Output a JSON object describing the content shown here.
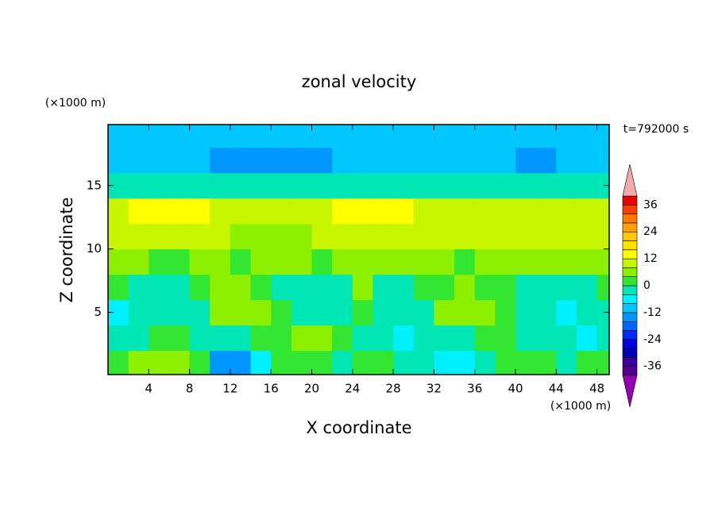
{
  "chart_data": {
    "type": "contour",
    "title": "zonal velocity",
    "xlabel": "X coordinate",
    "ylabel": "Z coordinate",
    "x_unit": "(×1000 m)",
    "y_unit": "(×1000 m)",
    "annotation": "t=792000 s",
    "xlim": [
      0,
      49.2
    ],
    "ylim": [
      0.1,
      19.8
    ],
    "xticks": [
      4,
      8,
      12,
      16,
      20,
      24,
      28,
      32,
      36,
      40,
      44,
      48
    ],
    "yticks": [
      5,
      10,
      15
    ],
    "x": [
      1,
      3,
      5,
      7,
      9,
      11,
      13,
      15,
      17,
      19,
      21,
      23,
      25,
      27,
      29,
      31,
      33,
      35,
      37,
      39,
      41,
      43,
      45,
      47,
      49
    ],
    "y": [
      1,
      3,
      5,
      7,
      9,
      11,
      13,
      15,
      17,
      19
    ],
    "z": [
      [
        2,
        6,
        6,
        6,
        2,
        -14,
        -14,
        -6,
        2,
        2,
        2,
        -2,
        2,
        2,
        -2,
        -2,
        -6,
        -6,
        -2,
        2,
        2,
        2,
        -2,
        2,
        2
      ],
      [
        -2,
        -2,
        2,
        2,
        -2,
        -2,
        -2,
        2,
        2,
        6,
        6,
        2,
        -2,
        -2,
        -6,
        -2,
        -2,
        -2,
        2,
        2,
        -2,
        -2,
        -2,
        -6,
        -2
      ],
      [
        -6,
        -2,
        -2,
        -2,
        -2,
        6,
        6,
        6,
        2,
        -2,
        -2,
        -2,
        2,
        -2,
        -2,
        -2,
        6,
        6,
        6,
        2,
        -2,
        -2,
        -6,
        -2,
        -2
      ],
      [
        2,
        -2,
        -2,
        -2,
        2,
        6,
        6,
        2,
        -2,
        -2,
        -2,
        -2,
        6,
        -2,
        -2,
        2,
        2,
        6,
        2,
        2,
        -2,
        -2,
        -2,
        -2,
        2
      ],
      [
        6,
        6,
        2,
        2,
        6,
        6,
        2,
        6,
        6,
        6,
        2,
        6,
        6,
        6,
        6,
        6,
        6,
        2,
        6,
        6,
        6,
        6,
        6,
        6,
        6
      ],
      [
        10,
        10,
        10,
        10,
        10,
        10,
        6,
        6,
        6,
        6,
        10,
        10,
        10,
        10,
        10,
        10,
        10,
        10,
        10,
        10,
        10,
        10,
        10,
        10,
        10
      ],
      [
        10,
        13,
        13,
        13,
        13,
        10,
        10,
        10,
        10,
        10,
        10,
        13,
        13,
        13,
        13,
        10,
        10,
        10,
        10,
        10,
        10,
        10,
        10,
        10,
        10
      ],
      [
        -2,
        -2,
        -2,
        -2,
        -2,
        -2,
        -2,
        -2,
        -2,
        -2,
        -2,
        -2,
        -2,
        -2,
        -2,
        -2,
        -2,
        -2,
        -2,
        -2,
        -2,
        -2,
        -2,
        -2,
        -2
      ],
      [
        -10,
        -10,
        -10,
        -10,
        -10,
        -14,
        -14,
        -14,
        -14,
        -14,
        -14,
        -10,
        -10,
        -10,
        -10,
        -10,
        -10,
        -10,
        -10,
        -10,
        -14,
        -14,
        -10,
        -10,
        -10
      ],
      [
        -10,
        -10,
        -10,
        -10,
        -10,
        -10,
        -10,
        -10,
        -10,
        -10,
        -10,
        -10,
        -10,
        -10,
        -10,
        -10,
        -10,
        -10,
        -10,
        -10,
        -10,
        -10,
        -10,
        -10,
        -10
      ]
    ],
    "levels": [
      -40,
      -36,
      -32,
      -28,
      -24,
      -20,
      -16,
      -12,
      -8,
      -4,
      0,
      4,
      8,
      12,
      16,
      20,
      24,
      28,
      32,
      36,
      40
    ],
    "colors": [
      "#9600b4",
      "#50008c",
      "#3c00a0",
      "#0000b4",
      "#0000e1",
      "#0028ff",
      "#0064ff",
      "#0096ff",
      "#00c8ff",
      "#00f0ff",
      "#00e6b4",
      "#32e632",
      "#8cf000",
      "#c8f500",
      "#ffff00",
      "#ffe100",
      "#ffc800",
      "#ffa000",
      "#ff7800",
      "#ff3c00",
      "#e60000",
      "#f5aaaa"
    ],
    "colorbar_ticks": [
      -36,
      -24,
      -12,
      0,
      12,
      24,
      36
    ]
  }
}
